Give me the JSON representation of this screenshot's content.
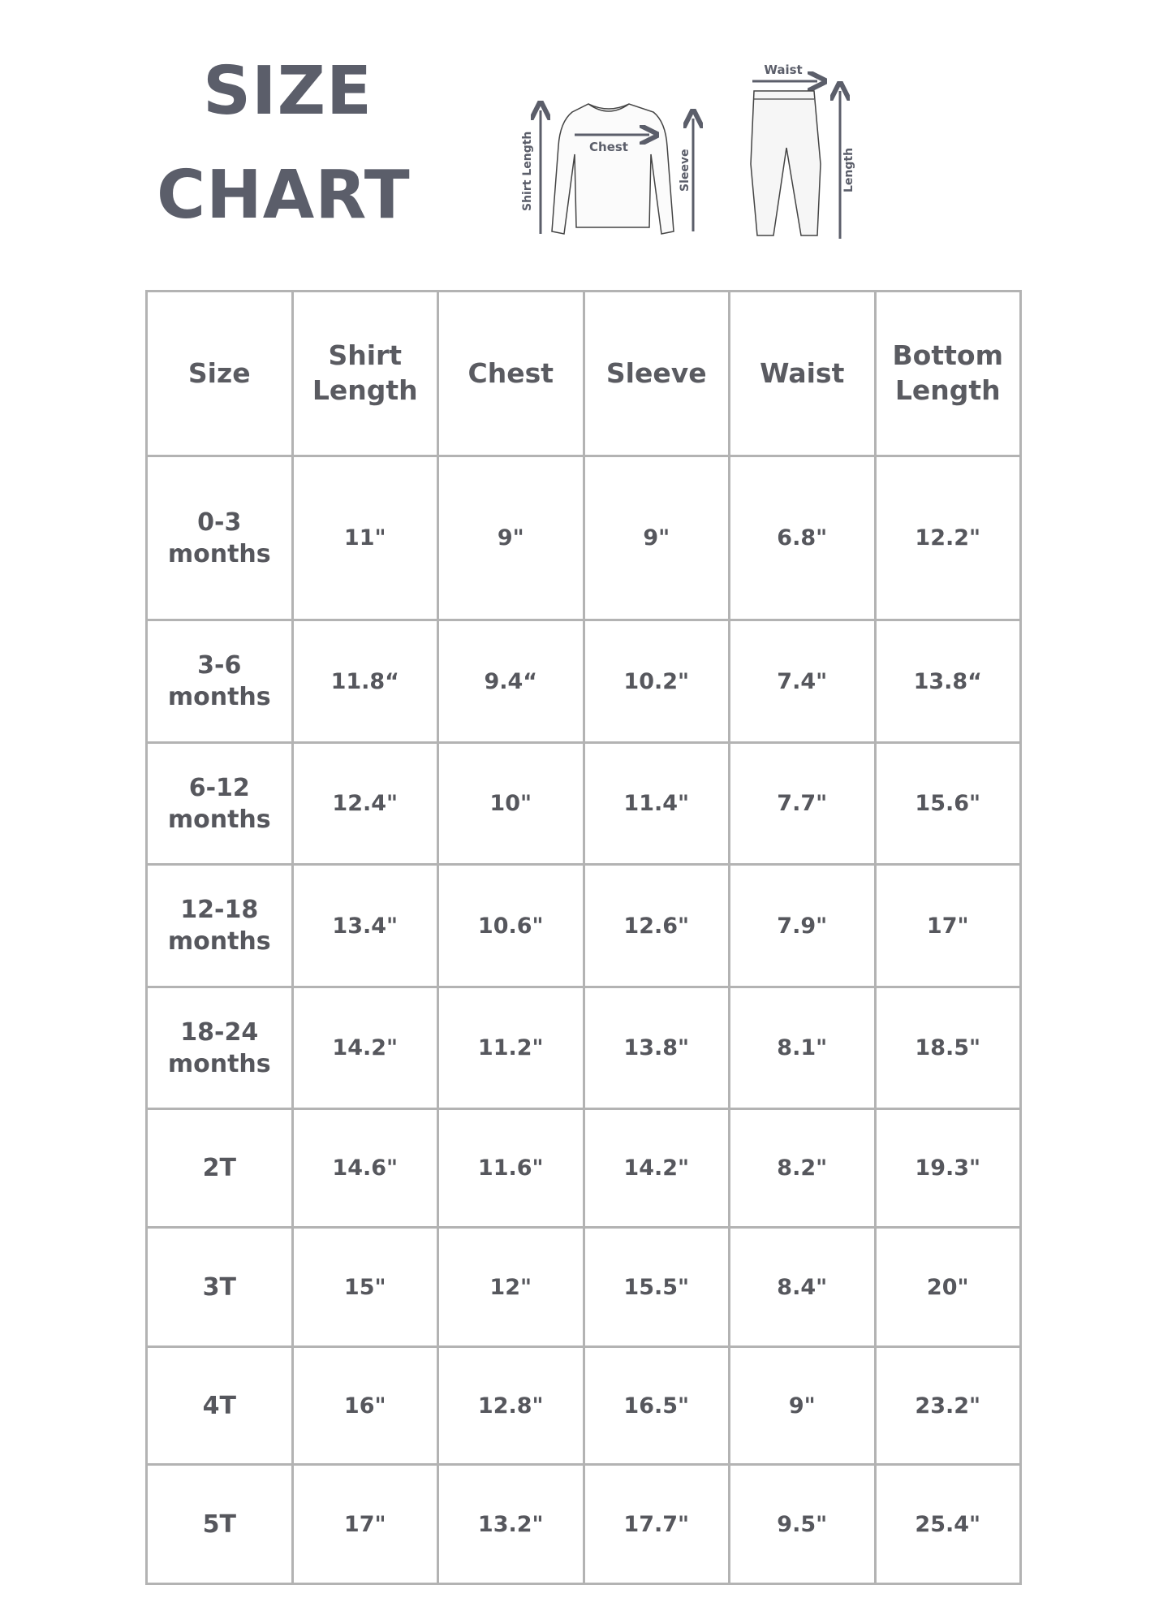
{
  "title": {
    "line1": "SIZE",
    "line2": "CHART"
  },
  "diagram": {
    "shirt_labels": {
      "length": "Shirt Length",
      "chest": "Chest",
      "sleeve": "Sleeve"
    },
    "pants_labels": {
      "waist": "Waist",
      "length": "Length"
    }
  },
  "colors": {
    "title": "#5b5e6a",
    "text": "#56575d",
    "grid": "#b3b3b3"
  },
  "table": {
    "headers": [
      [
        "Size"
      ],
      [
        "Shirt",
        "Length"
      ],
      [
        "Chest"
      ],
      [
        "Sleeve"
      ],
      [
        "Waist"
      ],
      [
        "Bottom",
        "Length"
      ]
    ],
    "rows": [
      {
        "size": [
          "0-3",
          "months"
        ],
        "values": [
          "11\"",
          "9\"",
          "9\"",
          "6.8\"",
          "12.2\""
        ]
      },
      {
        "size": [
          "3-6",
          "months"
        ],
        "values": [
          "11.8“",
          "9.4“",
          "10.2\"",
          "7.4\"",
          "13.8“"
        ]
      },
      {
        "size": [
          "6-12",
          "months"
        ],
        "values": [
          "12.4\"",
          "10\"",
          "11.4\"",
          "7.7\"",
          "15.6\""
        ]
      },
      {
        "size": [
          "12-18",
          "months"
        ],
        "values": [
          "13.4\"",
          "10.6\"",
          "12.6\"",
          "7.9\"",
          "17\""
        ]
      },
      {
        "size": [
          "18-24",
          "months"
        ],
        "values": [
          "14.2\"",
          "11.2\"",
          "13.8\"",
          "8.1\"",
          "18.5\""
        ]
      },
      {
        "size": [
          "2T"
        ],
        "values": [
          "14.6\"",
          "11.6\"",
          "14.2\"",
          "8.2\"",
          "19.3\""
        ]
      },
      {
        "size": [
          "3T"
        ],
        "values": [
          "15\"",
          "12\"",
          "15.5\"",
          "8.4\"",
          "20\""
        ]
      },
      {
        "size": [
          "4T"
        ],
        "values": [
          "16\"",
          "12.8\"",
          "16.5\"",
          "9\"",
          "23.2\""
        ]
      },
      {
        "size": [
          "5T"
        ],
        "values": [
          "17\"",
          "13.2\"",
          "17.7\"",
          "9.5\"",
          "25.4\""
        ]
      }
    ]
  }
}
